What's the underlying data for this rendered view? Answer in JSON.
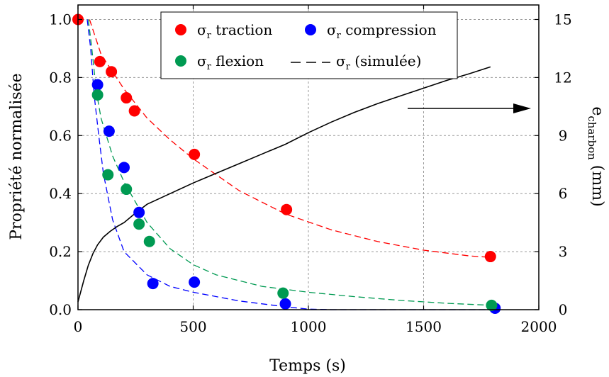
{
  "chart_data": {
    "type": "scatter",
    "xlabel": "Temps (s)",
    "ylabel": "Propriété normalisée",
    "y2label": {
      "base": "e",
      "sub": "charbon",
      "suffix": " (mm)"
    },
    "xlim": [
      0,
      2000
    ],
    "ylim": [
      0,
      1.05
    ],
    "y2lim": [
      0,
      15.75
    ],
    "xticks": [
      0,
      500,
      1000,
      1500,
      2000
    ],
    "yticks": [
      "0.0",
      "0.2",
      "0.4",
      "0.6",
      "0.8",
      "1.0"
    ],
    "y2ticks": [
      0,
      3,
      6,
      9,
      12,
      15
    ],
    "grid": true,
    "legend_position": "top-center",
    "series": [
      {
        "name": {
          "base": "σ",
          "sub": "r",
          "suffix": " traction"
        },
        "kind": "scatter",
        "color": "#ff0000",
        "points": [
          [
            0,
            1.0
          ],
          [
            95,
            0.855
          ],
          [
            145,
            0.82
          ],
          [
            210,
            0.73
          ],
          [
            245,
            0.685
          ],
          [
            505,
            0.535
          ],
          [
            905,
            0.345
          ],
          [
            1790,
            0.183
          ]
        ]
      },
      {
        "name": {
          "base": "σ",
          "sub": "r",
          "suffix": " compression"
        },
        "kind": "scatter",
        "color": "#0000ff",
        "points": [
          [
            85,
            0.775
          ],
          [
            135,
            0.615
          ],
          [
            200,
            0.49
          ],
          [
            265,
            0.335
          ],
          [
            325,
            0.09
          ],
          [
            505,
            0.095
          ],
          [
            900,
            0.02
          ],
          [
            1810,
            0.005
          ]
        ]
      },
      {
        "name": {
          "base": "σ",
          "sub": "r",
          "suffix": " flexion"
        },
        "kind": "scatter",
        "color": "#009a52",
        "points": [
          [
            85,
            0.74
          ],
          [
            130,
            0.465
          ],
          [
            210,
            0.415
          ],
          [
            265,
            0.295
          ],
          [
            310,
            0.235
          ],
          [
            890,
            0.057
          ],
          [
            1795,
            0.015
          ]
        ]
      },
      {
        "name": {
          "base": "σ",
          "sub": "r",
          "suffix": " (simulée)"
        },
        "kind": "dashed",
        "color": "#000000",
        "curves": [
          {
            "color": "#ff0000",
            "points": [
              [
                50,
                1.0
              ],
              [
                100,
                0.88
              ],
              [
                200,
                0.76
              ],
              [
                300,
                0.66
              ],
              [
                400,
                0.585
              ],
              [
                500,
                0.52
              ],
              [
                700,
                0.41
              ],
              [
                900,
                0.33
              ],
              [
                1100,
                0.275
              ],
              [
                1300,
                0.235
              ],
              [
                1500,
                0.205
              ],
              [
                1700,
                0.185
              ],
              [
                1800,
                0.18
              ]
            ]
          },
          {
            "color": "#009a52",
            "points": [
              [
                45,
                1.0
              ],
              [
                60,
                0.9
              ],
              [
                80,
                0.75
              ],
              [
                100,
                0.66
              ],
              [
                150,
                0.53
              ],
              [
                200,
                0.44
              ],
              [
                300,
                0.3
              ],
              [
                400,
                0.21
              ],
              [
                500,
                0.155
              ],
              [
                600,
                0.12
              ],
              [
                800,
                0.08
              ],
              [
                1000,
                0.06
              ],
              [
                1200,
                0.045
              ],
              [
                1400,
                0.032
              ],
              [
                1600,
                0.022
              ],
              [
                1800,
                0.015
              ]
            ]
          },
          {
            "color": "#0000ff",
            "points": [
              [
                40,
                1.0
              ],
              [
                55,
                0.9
              ],
              [
                70,
                0.74
              ],
              [
                90,
                0.6
              ],
              [
                110,
                0.47
              ],
              [
                150,
                0.31
              ],
              [
                200,
                0.2
              ],
              [
                300,
                0.12
              ],
              [
                400,
                0.08
              ],
              [
                500,
                0.06
              ],
              [
                700,
                0.03
              ],
              [
                900,
                0.01
              ],
              [
                1000,
                0.002
              ],
              [
                1100,
                0.0
              ],
              [
                1810,
                0.0
              ]
            ]
          }
        ]
      }
    ],
    "thickness": {
      "axis": "y2",
      "color": "#000000",
      "points": [
        [
          0,
          0.4
        ],
        [
          10,
          0.85
        ],
        [
          25,
          1.5
        ],
        [
          45,
          2.3
        ],
        [
          65,
          2.9
        ],
        [
          85,
          3.35
        ],
        [
          110,
          3.75
        ],
        [
          140,
          4.05
        ],
        [
          170,
          4.3
        ],
        [
          200,
          4.5
        ],
        [
          250,
          5.0
        ],
        [
          300,
          5.45
        ],
        [
          400,
          6.0
        ],
        [
          500,
          6.55
        ],
        [
          600,
          7.05
        ],
        [
          700,
          7.55
        ],
        [
          800,
          8.05
        ],
        [
          900,
          8.55
        ],
        [
          1000,
          9.15
        ],
        [
          1100,
          9.7
        ],
        [
          1200,
          10.2
        ],
        [
          1300,
          10.65
        ],
        [
          1400,
          11.05
        ],
        [
          1500,
          11.45
        ],
        [
          1600,
          11.85
        ],
        [
          1700,
          12.2
        ],
        [
          1790,
          12.55
        ]
      ]
    }
  }
}
